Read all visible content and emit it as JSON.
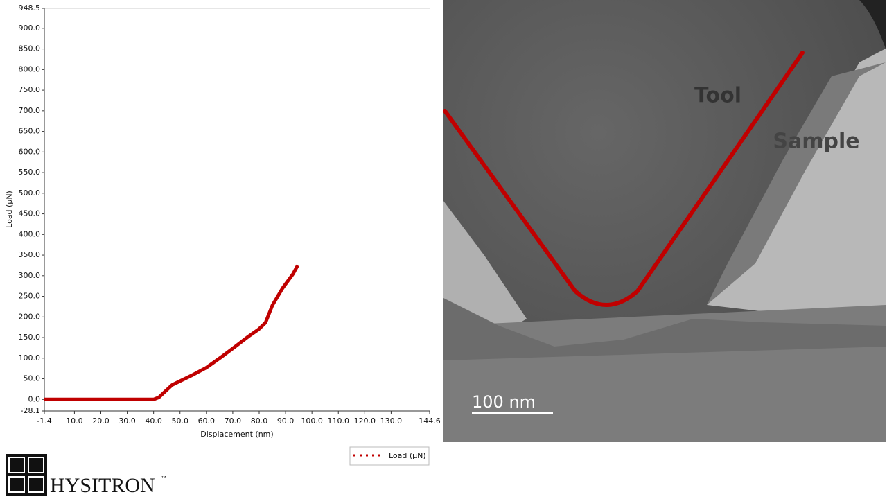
{
  "chart_data": {
    "type": "line",
    "x_label": "Displacement (nm)",
    "y_label": "Load (µN)",
    "x": [
      -1.4,
      10,
      20,
      30,
      40,
      42,
      47,
      55,
      60,
      65.5,
      70.7,
      76,
      79.8,
      82.4,
      85,
      88.9,
      92.8,
      94.6
    ],
    "series": [
      {
        "name": "Load (µN)",
        "color": "#c00000",
        "values": [
          0,
          0,
          0,
          0,
          0,
          5,
          35,
          60,
          77,
          102,
          127,
          153,
          170,
          186,
          228,
          270,
          304,
          325
        ]
      }
    ],
    "xlim": [
      -1.4,
      144.6
    ],
    "xticks": [
      -1.4,
      {
        "value": 10,
        "label": "10.0"
      },
      {
        "value": 20,
        "label": "20.0"
      },
      {
        "value": 30,
        "label": "30.0"
      },
      {
        "value": 40,
        "label": "40.0"
      },
      {
        "value": 50,
        "label": "50.0"
      },
      {
        "value": 60,
        "label": "60.0"
      },
      {
        "value": 70,
        "label": "70.0"
      },
      {
        "value": 80,
        "label": "80.0"
      },
      {
        "value": 90,
        "label": "90.0"
      },
      {
        "value": 100,
        "label": "100.0"
      },
      {
        "value": 110,
        "label": "110.0"
      },
      {
        "value": 120,
        "label": "120.0"
      },
      {
        "value": 130,
        "label": "130.0"
      },
      144.6
    ],
    "ylim": [
      -28.1,
      948.5
    ],
    "yticks": [
      -28.1,
      {
        "value": 0,
        "label": "0.0"
      },
      {
        "value": 50,
        "label": "50.0"
      },
      {
        "value": 100,
        "label": "100.0"
      },
      {
        "value": 150,
        "label": "150.0"
      },
      {
        "value": 200,
        "label": "200.0"
      },
      {
        "value": 250,
        "label": "250.0"
      },
      {
        "value": 300,
        "label": "300.0"
      },
      {
        "value": 350,
        "label": "350.0"
      },
      {
        "value": 400,
        "label": "400.0"
      },
      {
        "value": 450,
        "label": "450.0"
      },
      {
        "value": 500,
        "label": "500.0"
      },
      {
        "value": 550,
        "label": "550.0"
      },
      {
        "value": 600,
        "label": "600.0"
      },
      {
        "value": 650,
        "label": "650.0"
      },
      {
        "value": 700,
        "label": "700.0"
      },
      {
        "value": 750,
        "label": "750.0"
      },
      {
        "value": 800,
        "label": "800.0"
      },
      {
        "value": 850,
        "label": "850.0"
      },
      {
        "value": 900,
        "label": "900.0"
      },
      948.5
    ],
    "legend": "bottom-right"
  },
  "image": {
    "labels": [
      "Tool",
      "Sample"
    ],
    "scale_bar": "100 nm"
  },
  "logo": {
    "name": "HYSITRON",
    "mark": "™"
  }
}
